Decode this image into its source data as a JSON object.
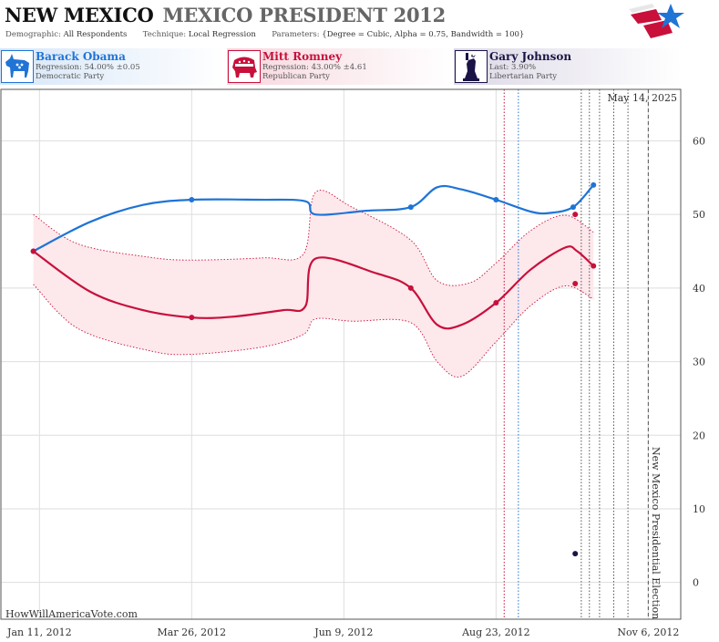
{
  "header": {
    "state": "NEW MEXICO",
    "race": "MEXICO PRESIDENT 2012",
    "demographic_label": "Demographic:",
    "demographic": "All Respondents",
    "technique_label": "Technique:",
    "technique": "Local Regression",
    "parameters_label": "Parameters:",
    "parameters": "{Degree = Cubic, Alpha = 0.75, Bandwidth = 100}"
  },
  "candidates": [
    {
      "name": "Barack Obama",
      "stat": "Regression: 54.00% ±0.05",
      "party": "Democratic Party",
      "icon": "donkey-icon",
      "color": "#1f74d6"
    },
    {
      "name": "Mitt Romney",
      "stat": "Regression: 43.00% ±4.61",
      "party": "Republican Party",
      "icon": "elephant-icon",
      "color": "#c8103b"
    },
    {
      "name": "Gary Johnson",
      "stat": "Last: 3.90%",
      "party": "Libertarian Party",
      "icon": "statue-of-liberty-icon",
      "color": "#1a1446"
    }
  ],
  "chart_data": {
    "type": "line",
    "date_label": "May 14, 2025",
    "watermark": "HowWillAmericaVote.com",
    "event_label": "New Mexico Presidential Election",
    "x_ticks": [
      "Jan 11, 2012",
      "Mar 26, 2012",
      "Jun 9, 2012",
      "Aug 23, 2012",
      "Nov 6, 2012"
    ],
    "y_ticks": [
      0,
      10,
      20,
      30,
      40,
      50,
      60
    ],
    "ylim": [
      -5,
      67
    ],
    "xlim": [
      "2011-12-23",
      "2012-11-22"
    ],
    "grid": true,
    "series": [
      {
        "name": "Barack Obama",
        "color": "#1f74d6",
        "curve": [
          [
            "2012-01-08",
            45
          ],
          [
            "2012-02-05",
            49
          ],
          [
            "2012-03-02",
            51.3
          ],
          [
            "2012-03-26",
            52
          ],
          [
            "2012-04-28",
            52
          ],
          [
            "2012-05-21",
            51.8
          ],
          [
            "2012-05-26",
            50
          ],
          [
            "2012-06-20",
            50.5
          ],
          [
            "2012-07-12",
            51
          ],
          [
            "2012-07-25",
            53.7
          ],
          [
            "2012-08-06",
            53.4
          ],
          [
            "2012-08-23",
            52
          ],
          [
            "2012-09-09",
            50.4
          ],
          [
            "2012-09-18",
            50.2
          ],
          [
            "2012-09-30",
            51
          ],
          [
            "2012-10-10",
            54
          ]
        ],
        "points": [
          [
            "2012-01-08",
            45
          ],
          [
            "2012-03-26",
            52
          ],
          [
            "2012-07-12",
            51
          ],
          [
            "2012-08-23",
            52
          ],
          [
            "2012-09-30",
            51
          ],
          [
            "2012-10-10",
            54
          ]
        ]
      },
      {
        "name": "Mitt Romney",
        "color": "#c8103b",
        "curve": [
          [
            "2012-01-08",
            45
          ],
          [
            "2012-02-05",
            39.5
          ],
          [
            "2012-03-02",
            37
          ],
          [
            "2012-03-26",
            36
          ],
          [
            "2012-04-15",
            36.1
          ],
          [
            "2012-05-10",
            37
          ],
          [
            "2012-05-21",
            37.5
          ],
          [
            "2012-05-26",
            44
          ],
          [
            "2012-06-25",
            42
          ],
          [
            "2012-07-12",
            40
          ],
          [
            "2012-07-25",
            35
          ],
          [
            "2012-08-06",
            35
          ],
          [
            "2012-08-23",
            38
          ],
          [
            "2012-09-09",
            42.5
          ],
          [
            "2012-09-26",
            45.5
          ],
          [
            "2012-10-02",
            45
          ],
          [
            "2012-10-10",
            43
          ]
        ],
        "points": [
          [
            "2012-01-08",
            45
          ],
          [
            "2012-03-26",
            36
          ],
          [
            "2012-07-12",
            40
          ],
          [
            "2012-08-23",
            38
          ],
          [
            "2012-10-01",
            50
          ],
          [
            "2012-10-01",
            40.6
          ],
          [
            "2012-10-10",
            43
          ]
        ],
        "band_upper": [
          [
            "2012-01-08",
            50
          ],
          [
            "2012-01-30",
            46
          ],
          [
            "2012-03-05",
            44.2
          ],
          [
            "2012-03-26",
            43.8
          ],
          [
            "2012-04-30",
            44.1
          ],
          [
            "2012-05-20",
            44.6
          ],
          [
            "2012-05-26",
            53
          ],
          [
            "2012-06-13",
            51
          ],
          [
            "2012-07-12",
            46.5
          ],
          [
            "2012-07-25",
            41
          ],
          [
            "2012-08-10",
            40.7
          ],
          [
            "2012-08-23",
            43.4
          ],
          [
            "2012-09-09",
            47.8
          ],
          [
            "2012-09-26",
            49.9
          ],
          [
            "2012-10-10",
            47.6
          ]
        ],
        "band_lower": [
          [
            "2012-01-08",
            40.5
          ],
          [
            "2012-01-30",
            34.5
          ],
          [
            "2012-03-05",
            31.5
          ],
          [
            "2012-03-26",
            31
          ],
          [
            "2012-04-30",
            32
          ],
          [
            "2012-05-20",
            33.7
          ],
          [
            "2012-05-26",
            35.8
          ],
          [
            "2012-06-13",
            35.5
          ],
          [
            "2012-07-12",
            35.3
          ],
          [
            "2012-07-25",
            30
          ],
          [
            "2012-08-06",
            28
          ],
          [
            "2012-08-23",
            32.7
          ],
          [
            "2012-09-09",
            37.6
          ],
          [
            "2012-09-26",
            40.3
          ],
          [
            "2012-10-10",
            38.5
          ]
        ]
      },
      {
        "name": "Gary Johnson",
        "color": "#1a1446",
        "curve": [],
        "points": [
          [
            "2012-10-01",
            3.9
          ]
        ]
      }
    ],
    "vertical_markers": [
      {
        "date": "2012-08-27",
        "color": "#c8103b",
        "style": "dotted"
      },
      {
        "date": "2012-09-03",
        "color": "#1f74d6",
        "style": "dotted"
      },
      {
        "date": "2012-10-04",
        "color": "#555555",
        "style": "dotted"
      },
      {
        "date": "2012-10-08",
        "color": "#555555",
        "style": "dotted"
      },
      {
        "date": "2012-10-13",
        "color": "#555555",
        "style": "dotted"
      },
      {
        "date": "2012-10-20",
        "color": "#555555",
        "style": "dotted"
      },
      {
        "date": "2012-10-27",
        "color": "#555555",
        "style": "dotted"
      },
      {
        "date": "2012-11-06",
        "color": "#555555",
        "style": "dashed"
      }
    ]
  }
}
